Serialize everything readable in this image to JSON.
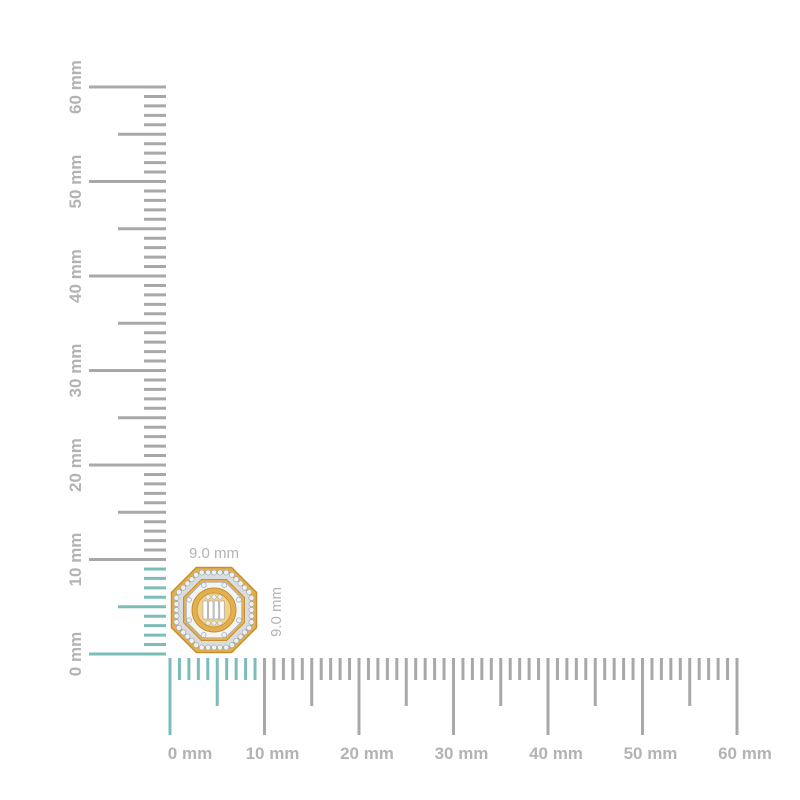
{
  "product": {
    "name": "octagon-baguette-diamond-stud-earring",
    "width_label": "9.0 mm",
    "height_label": "9.0 mm",
    "width_mm": 9.0,
    "height_mm": 9.0
  },
  "rulers": {
    "horizontal_labels": [
      "0 mm",
      "10 mm",
      "20 mm",
      "30 mm",
      "40 mm",
      "50 mm",
      "60 mm"
    ],
    "vertical_labels": [
      "0 mm",
      "10 mm",
      "20 mm",
      "30 mm",
      "40 mm",
      "50 mm",
      "60 mm"
    ],
    "max_mm": 60,
    "highlight_mm": 9
  },
  "colors": {
    "ruler": "#a8a8a8",
    "highlight": "#7dbdb9",
    "label": "#b3b3b3",
    "gold": "#e3b04f",
    "gold_dark": "#c98f2c",
    "diamond": "#eef1f4"
  }
}
